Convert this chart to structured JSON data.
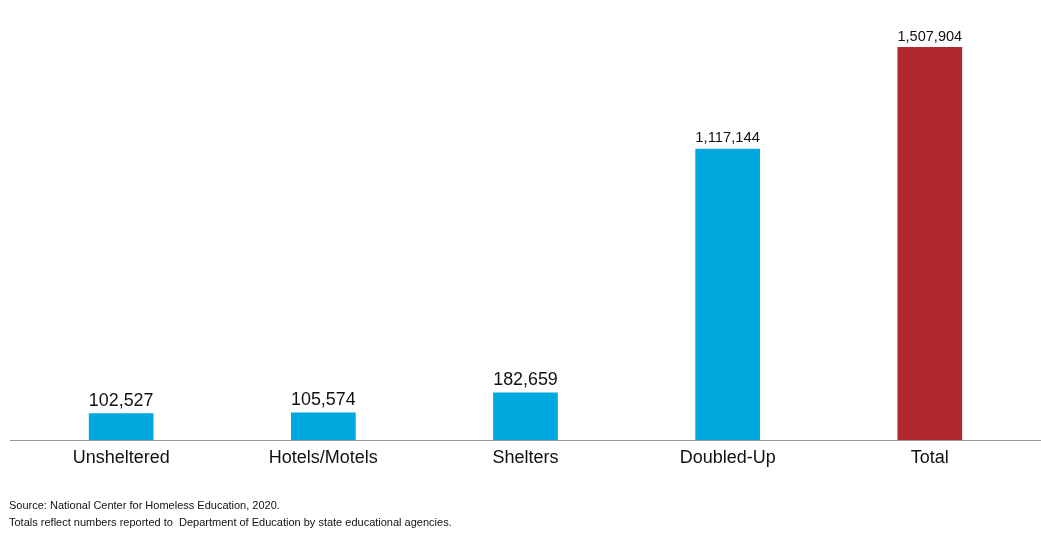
{
  "chart_data": {
    "type": "bar",
    "categories": [
      "Unsheltered",
      "Hotels/Motels",
      "Shelters",
      "Doubled-Up",
      "Total"
    ],
    "values": [
      102527,
      105574,
      182659,
      1117144,
      1507904
    ],
    "value_labels": [
      "102,527",
      "105,574",
      "182,659",
      "1,117,144",
      "1,507,904"
    ],
    "colors": [
      "#00a8e0",
      "#00a8e0",
      "#00a8e0",
      "#00a8e0",
      "#b0272d"
    ],
    "annotations": [
      "Source: National Center for Homeless Education, 2020.",
      "Totals reflect numbers reported to  Department of Education by state educational agencies."
    ],
    "legend": false
  }
}
